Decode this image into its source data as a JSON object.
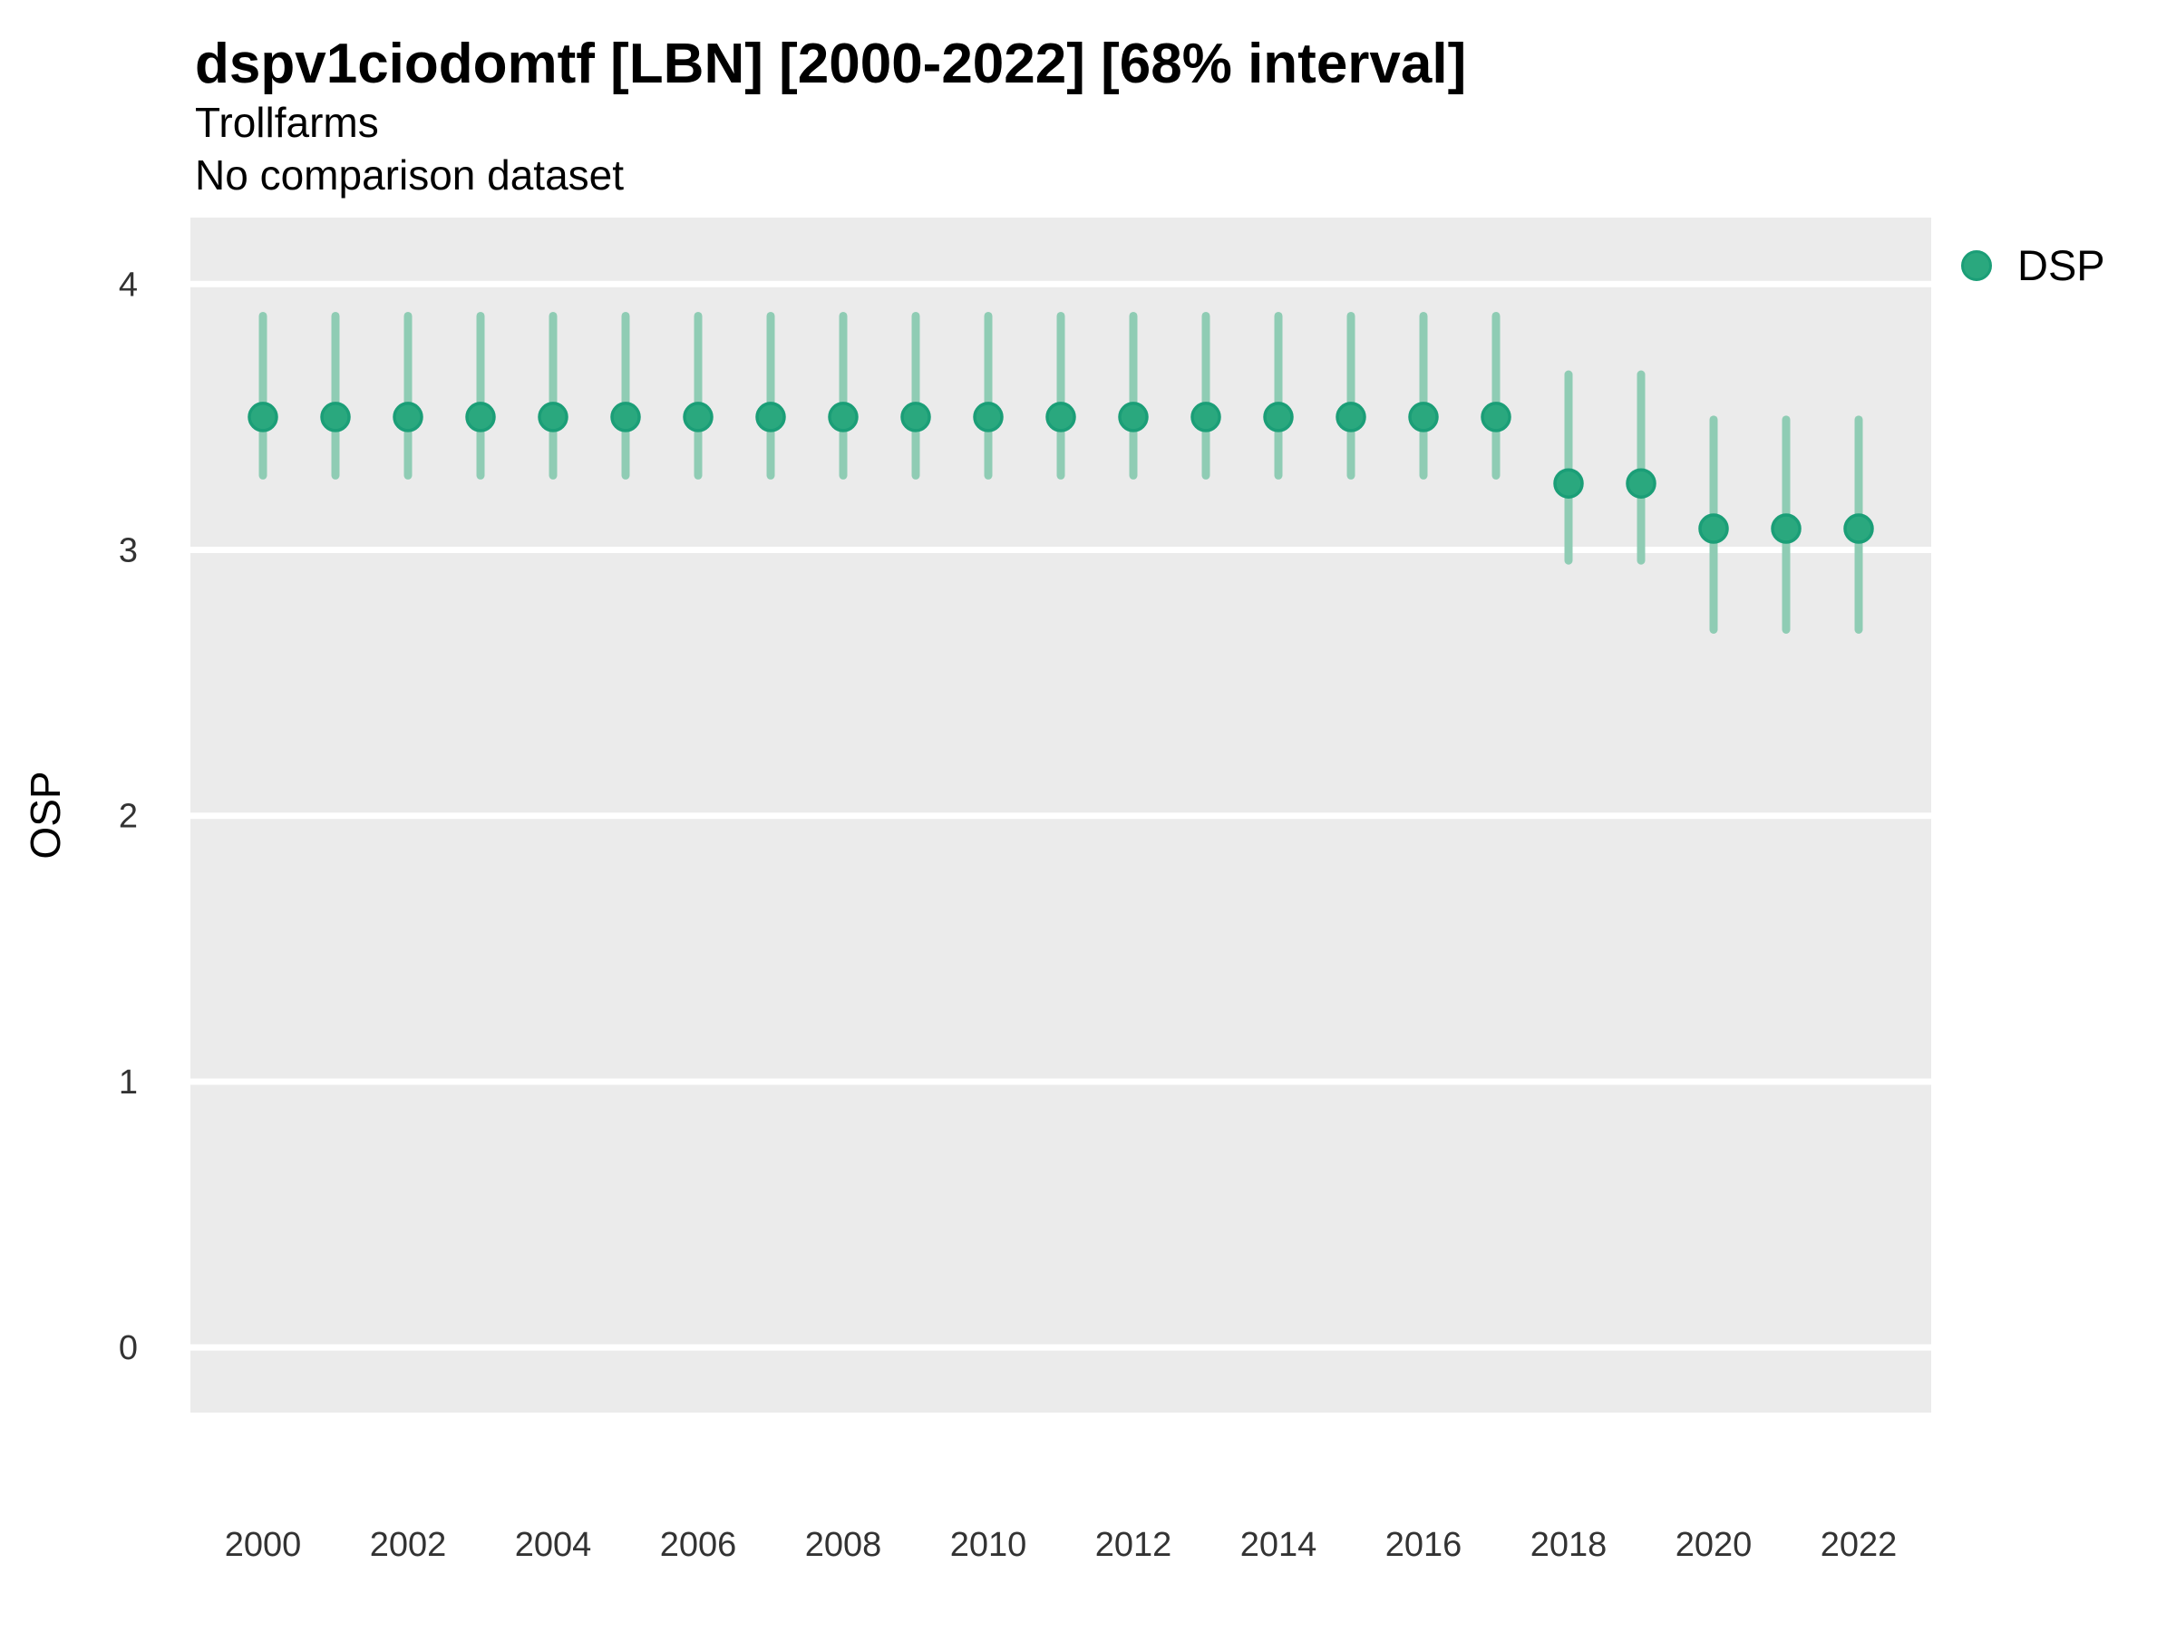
{
  "header": {
    "title": "dspv1ciodomtf [LBN] [2000-2022] [68% interval]",
    "subtitle": "Trollfarms",
    "note": "No comparison dataset"
  },
  "colors": {
    "page_background": "#ffffff",
    "panel_background": "#ebebeb",
    "gridline": "#ffffff",
    "point_fill": "#2aa87e",
    "point_stroke": "#1b9e77",
    "interval_bar": "#8fccb4",
    "tick_label": "#333333",
    "text": "#000000"
  },
  "chart_data": {
    "type": "pointrange",
    "title": "dspv1ciodomtf [LBN] [2000-2022] [68% interval]",
    "subtitle": "Trollfarms",
    "note": "No comparison dataset",
    "xlabel": "",
    "ylabel": "OSP",
    "interval": "68%",
    "grid": "horizontal-major-only",
    "legend_position": "right-top",
    "x_domain": [
      1999,
      2023
    ],
    "y_domain": [
      -0.245,
      4.25
    ],
    "x_ticks": [
      2000,
      2002,
      2004,
      2006,
      2008,
      2010,
      2012,
      2014,
      2016,
      2018,
      2020,
      2022
    ],
    "y_ticks": [
      0,
      1,
      2,
      3,
      4
    ],
    "series": [
      {
        "name": "DSP",
        "x": [
          2000,
          2001,
          2002,
          2003,
          2004,
          2005,
          2006,
          2007,
          2008,
          2009,
          2010,
          2011,
          2012,
          2013,
          2014,
          2015,
          2016,
          2017,
          2018,
          2019,
          2020,
          2021,
          2022
        ],
        "y": [
          3.5,
          3.5,
          3.5,
          3.5,
          3.5,
          3.5,
          3.5,
          3.5,
          3.5,
          3.5,
          3.5,
          3.5,
          3.5,
          3.5,
          3.5,
          3.5,
          3.5,
          3.5,
          3.25,
          3.25,
          3.08,
          3.08,
          3.08
        ],
        "y_lo": [
          3.28,
          3.28,
          3.28,
          3.28,
          3.28,
          3.28,
          3.28,
          3.28,
          3.28,
          3.28,
          3.28,
          3.28,
          3.28,
          3.28,
          3.28,
          3.28,
          3.28,
          3.28,
          2.96,
          2.96,
          2.7,
          2.7,
          2.7
        ],
        "y_hi": [
          3.88,
          3.88,
          3.88,
          3.88,
          3.88,
          3.88,
          3.88,
          3.88,
          3.88,
          3.88,
          3.88,
          3.88,
          3.88,
          3.88,
          3.88,
          3.88,
          3.88,
          3.88,
          3.66,
          3.66,
          3.49,
          3.49,
          3.49
        ]
      }
    ]
  },
  "legend": {
    "items": [
      {
        "label": "DSP",
        "color": "#1b9e77"
      }
    ]
  }
}
